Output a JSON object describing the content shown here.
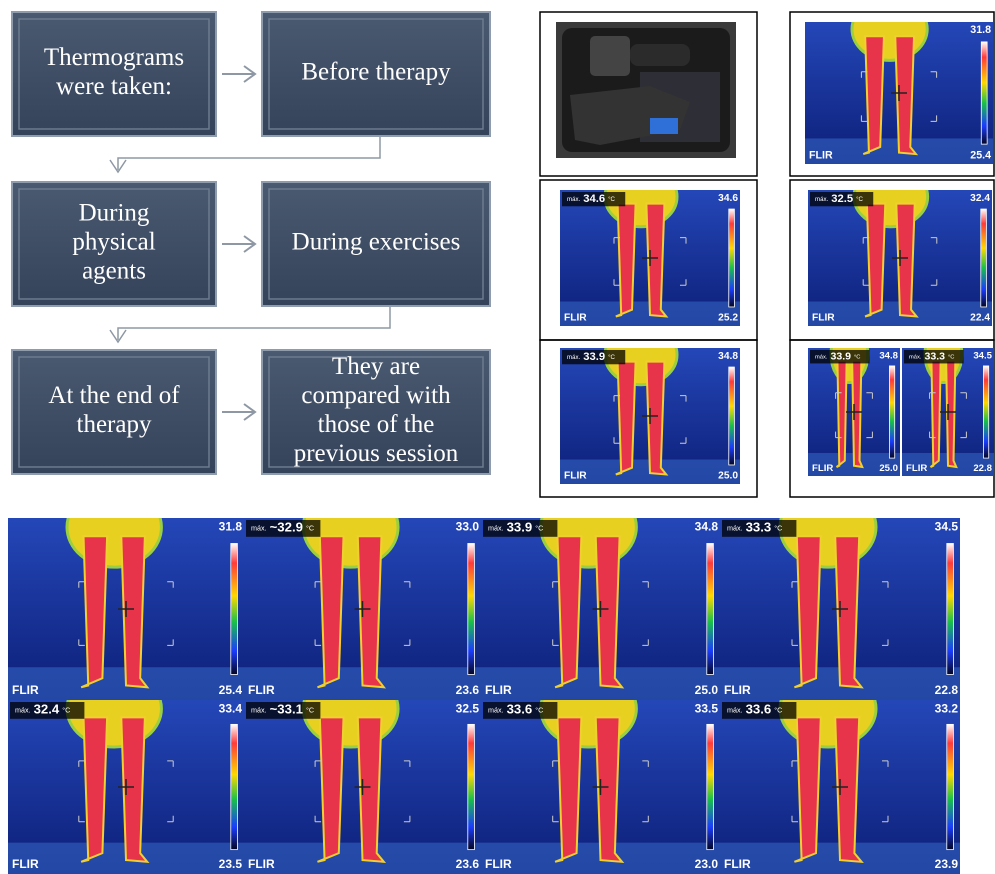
{
  "flowchart": {
    "boxes": [
      {
        "lines": [
          "Thermograms",
          "were taken:"
        ]
      },
      {
        "lines": [
          "Before therapy"
        ]
      },
      {
        "lines": [
          "During",
          "physical",
          "agents"
        ]
      },
      {
        "lines": [
          "During exercises"
        ]
      },
      {
        "lines": [
          "At the end of",
          "therapy"
        ]
      },
      {
        "lines": [
          "They are",
          "compared with",
          "those of the",
          "previous session"
        ]
      }
    ]
  },
  "thermal": {
    "brand": "FLIR",
    "reading_prefix": "máx.",
    "unit": "°C",
    "top_panels": [
      {
        "scale_max": "31.8",
        "scale_min": "25.4"
      },
      {
        "reading": "34.6",
        "scale_max": "34.6",
        "scale_min": "25.2"
      },
      {
        "reading": "32.5",
        "scale_max": "32.4",
        "scale_min": "22.4"
      },
      {
        "reading": "33.9",
        "scale_max": "34.8",
        "scale_min": "25.0"
      },
      {
        "reading": "33.9",
        "scale_max": "34.8",
        "scale_min": "25.0"
      },
      {
        "reading": "33.3",
        "scale_max": "34.5",
        "scale_min": "22.8"
      }
    ],
    "grid": [
      {
        "scale_max": "31.8",
        "scale_min": "25.4"
      },
      {
        "reading": "~32.9",
        "scale_max": "33.0",
        "scale_min": "23.6"
      },
      {
        "reading": "33.9",
        "scale_max": "34.8",
        "scale_min": "25.0"
      },
      {
        "reading": "33.3",
        "scale_max": "34.5",
        "scale_min": "22.8"
      },
      {
        "reading": "32.4",
        "scale_max": "33.4",
        "scale_min": "23.5"
      },
      {
        "reading": "~33.1",
        "scale_max": "32.5",
        "scale_min": "23.6"
      },
      {
        "reading": "33.6",
        "scale_max": "33.5",
        "scale_min": "23.0"
      },
      {
        "reading": "33.6",
        "scale_max": "33.2",
        "scale_min": "23.9"
      }
    ]
  }
}
